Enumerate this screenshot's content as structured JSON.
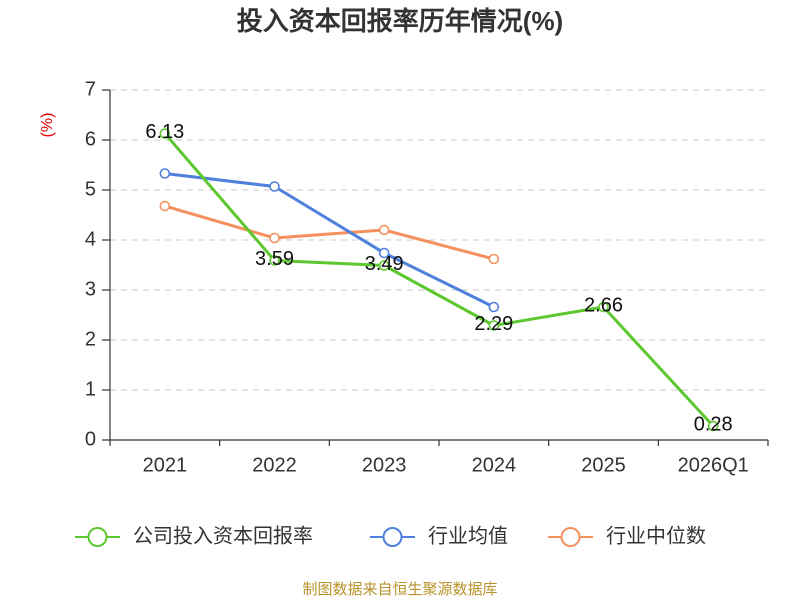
{
  "footer": "制图数据来自恒生聚源数据库",
  "colors": {
    "footer": "#b8922a",
    "ylabel": "#e60000",
    "axis": "#333333",
    "grid": "#c8c8c8"
  },
  "chart_data": {
    "type": "line",
    "title": "投入资本回报率历年情况(%)",
    "ylabel": "(%)",
    "categories": [
      "2021",
      "2022",
      "2023",
      "2024",
      "2025",
      "2026Q1"
    ],
    "ylim": [
      0,
      7
    ],
    "yticks": [
      0,
      1,
      2,
      3,
      4,
      5,
      6,
      7
    ],
    "grid": true,
    "legend": "bottom",
    "series": [
      {
        "name": "公司投入资本回报率",
        "color": "#5cc72e",
        "values": [
          6.13,
          3.59,
          3.49,
          2.29,
          2.66,
          0.28
        ],
        "data_labels": [
          "6.13",
          "3.59",
          "3.49",
          "2.29",
          "2.66",
          "0.28"
        ]
      },
      {
        "name": "行业均值",
        "color": "#4f80dc",
        "values": [
          5.33,
          5.07,
          3.74,
          2.66,
          null,
          null
        ]
      },
      {
        "name": "行业中位数",
        "color": "#f5915e",
        "values": [
          4.68,
          4.04,
          4.2,
          3.62,
          null,
          null
        ]
      }
    ]
  }
}
